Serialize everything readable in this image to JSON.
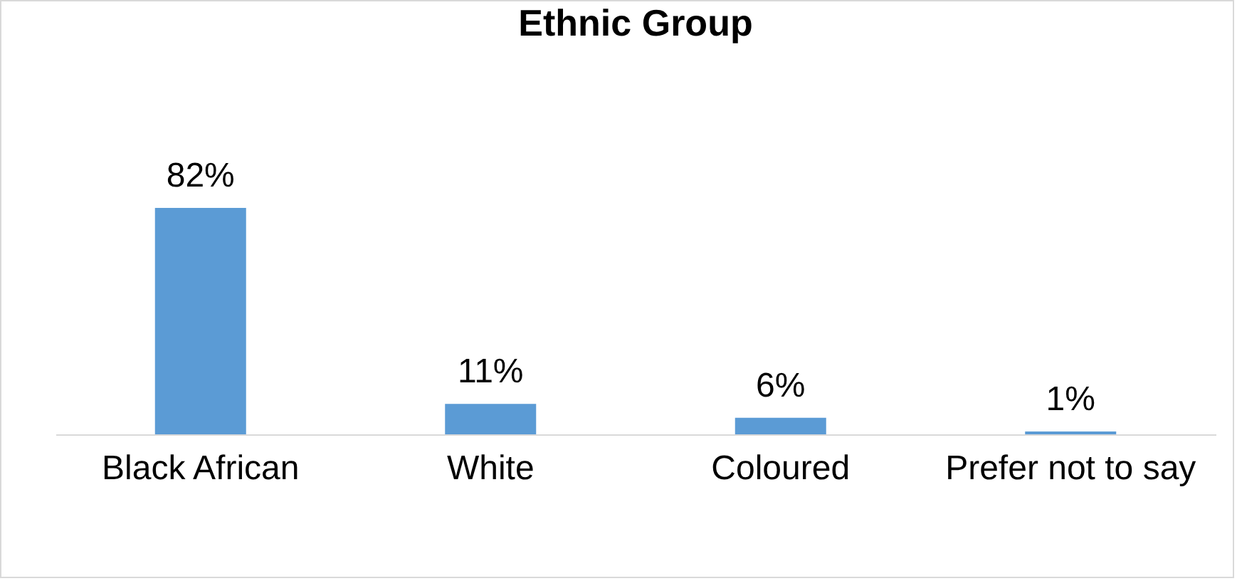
{
  "chart_data": {
    "type": "bar",
    "title": "Ethnic Group",
    "categories": [
      "Black African",
      "White",
      "Coloured",
      "Prefer not to say"
    ],
    "values": [
      82,
      11,
      6,
      1
    ],
    "value_labels": [
      "82%",
      "11%",
      "6%",
      "1%"
    ],
    "color": "#5b9bd5",
    "grid": false,
    "tick_labels": "x"
  }
}
